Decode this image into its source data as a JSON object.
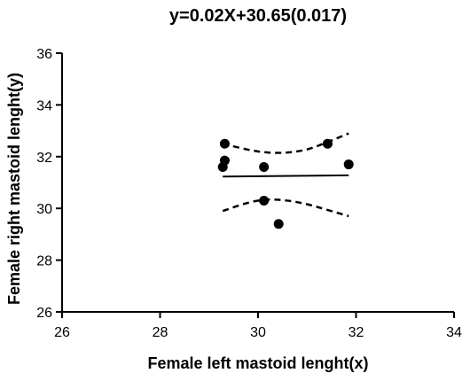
{
  "chart_data": {
    "type": "scatter",
    "title": "y=0.02X+30.65(0.017)",
    "xlabel": "Female left mastoid lenght(x)",
    "ylabel": "Female right mastoid lenght(y)",
    "xlim": [
      26,
      34
    ],
    "ylim": [
      26,
      36
    ],
    "x_ticks": [
      26,
      28,
      30,
      32,
      34
    ],
    "y_ticks": [
      26,
      28,
      30,
      32,
      34,
      36
    ],
    "grid": false,
    "points": [
      {
        "x": 29.32,
        "y": 32.5
      },
      {
        "x": 29.32,
        "y": 31.85
      },
      {
        "x": 29.28,
        "y": 31.6
      },
      {
        "x": 30.12,
        "y": 31.6
      },
      {
        "x": 31.42,
        "y": 32.5
      },
      {
        "x": 31.85,
        "y": 31.7
      },
      {
        "x": 30.12,
        "y": 30.3
      },
      {
        "x": 30.42,
        "y": 29.4
      }
    ],
    "regression_line": {
      "x": [
        29.28,
        31.85
      ],
      "y": [
        31.23,
        31.28
      ]
    },
    "confidence_upper": {
      "x": [
        29.28,
        29.8,
        30.2,
        30.6,
        31.0,
        31.4,
        31.85
      ],
      "y": [
        32.5,
        32.27,
        32.16,
        32.16,
        32.28,
        32.55,
        32.9
      ]
    },
    "confidence_lower": {
      "x": [
        29.28,
        29.8,
        30.2,
        30.6,
        31.0,
        31.4,
        31.85
      ],
      "y": [
        29.9,
        30.22,
        30.34,
        30.3,
        30.16,
        29.95,
        29.7
      ]
    }
  }
}
